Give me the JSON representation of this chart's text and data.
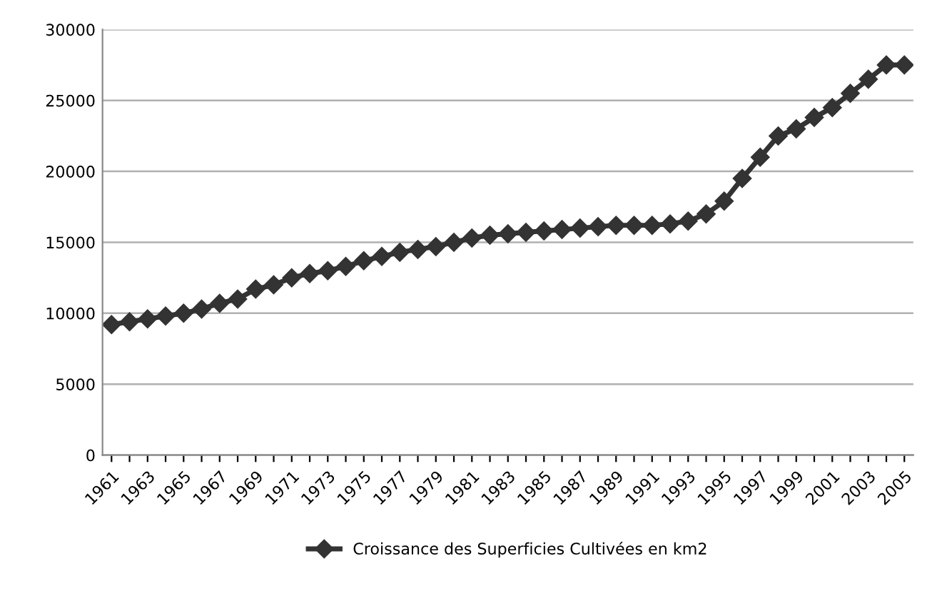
{
  "chart_data": {
    "type": "line",
    "categories": [
      "1961",
      null,
      "1963",
      null,
      "1965",
      null,
      "1967",
      null,
      "1969",
      null,
      "1971",
      null,
      "1973",
      null,
      "1975",
      null,
      "1977",
      null,
      "1979",
      null,
      "1981",
      null,
      "1983",
      null,
      "1985",
      null,
      "1987",
      null,
      "1989",
      null,
      "1991",
      null,
      "1993",
      null,
      "1995",
      null,
      "1997",
      null,
      "1999",
      null,
      "2001",
      null,
      "2003",
      null,
      "2005"
    ],
    "series": [
      {
        "name": "Croissance des Superficies Cultivées en km2",
        "color": "#333333",
        "values": [
          9200,
          9400,
          9600,
          9800,
          10000,
          10300,
          10700,
          11000,
          11700,
          12000,
          12500,
          12800,
          13000,
          13300,
          13700,
          14000,
          14300,
          14500,
          14700,
          15000,
          15300,
          15500,
          15600,
          15700,
          15800,
          15900,
          16000,
          16100,
          16200,
          16200,
          16200,
          16300,
          16500,
          17000,
          17900,
          19500,
          21000,
          22500,
          23000,
          23800,
          24500,
          25500,
          26500,
          27500,
          27500
        ]
      }
    ],
    "ylim": [
      0,
      30000
    ],
    "yticks": [
      0,
      5000,
      10000,
      15000,
      20000,
      25000,
      30000
    ],
    "grid": "y",
    "legend": "bottom",
    "marker": "diamond",
    "line_style": "solid"
  }
}
